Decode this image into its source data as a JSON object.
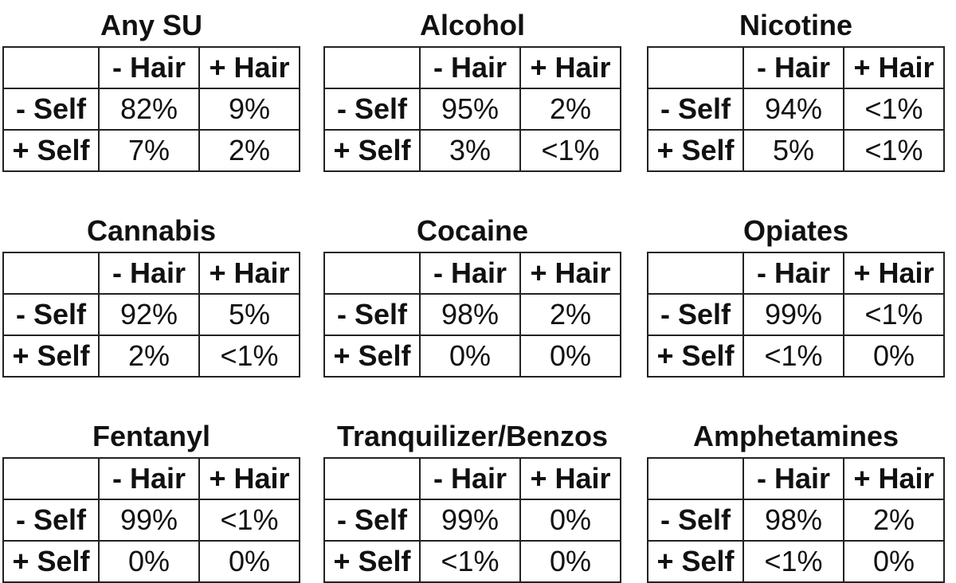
{
  "chart_data": {
    "type": "table",
    "col_labels": [
      "- Hair",
      "+ Hair"
    ],
    "row_labels": [
      "- Self",
      "+ Self"
    ],
    "panels": [
      {
        "title": "Any SU",
        "cells": [
          [
            "82%",
            "9%"
          ],
          [
            "7%",
            "2%"
          ]
        ]
      },
      {
        "title": "Alcohol",
        "cells": [
          [
            "95%",
            "2%"
          ],
          [
            "3%",
            "<1%"
          ]
        ]
      },
      {
        "title": "Nicotine",
        "cells": [
          [
            "94%",
            "<1%"
          ],
          [
            "5%",
            "<1%"
          ]
        ]
      },
      {
        "title": "Cannabis",
        "cells": [
          [
            "92%",
            "5%"
          ],
          [
            "2%",
            "<1%"
          ]
        ]
      },
      {
        "title": "Cocaine",
        "cells": [
          [
            "98%",
            "2%"
          ],
          [
            "0%",
            "0%"
          ]
        ]
      },
      {
        "title": "Opiates",
        "cells": [
          [
            "99%",
            "<1%"
          ],
          [
            "<1%",
            "0%"
          ]
        ]
      },
      {
        "title": "Fentanyl",
        "cells": [
          [
            "99%",
            "<1%"
          ],
          [
            "0%",
            "0%"
          ]
        ]
      },
      {
        "title": "Tranquilizer/Benzos",
        "cells": [
          [
            "99%",
            "0%"
          ],
          [
            "<1%",
            "0%"
          ]
        ]
      },
      {
        "title": "Amphetamines",
        "cells": [
          [
            "98%",
            "2%"
          ],
          [
            "<1%",
            "0%"
          ]
        ]
      }
    ]
  }
}
